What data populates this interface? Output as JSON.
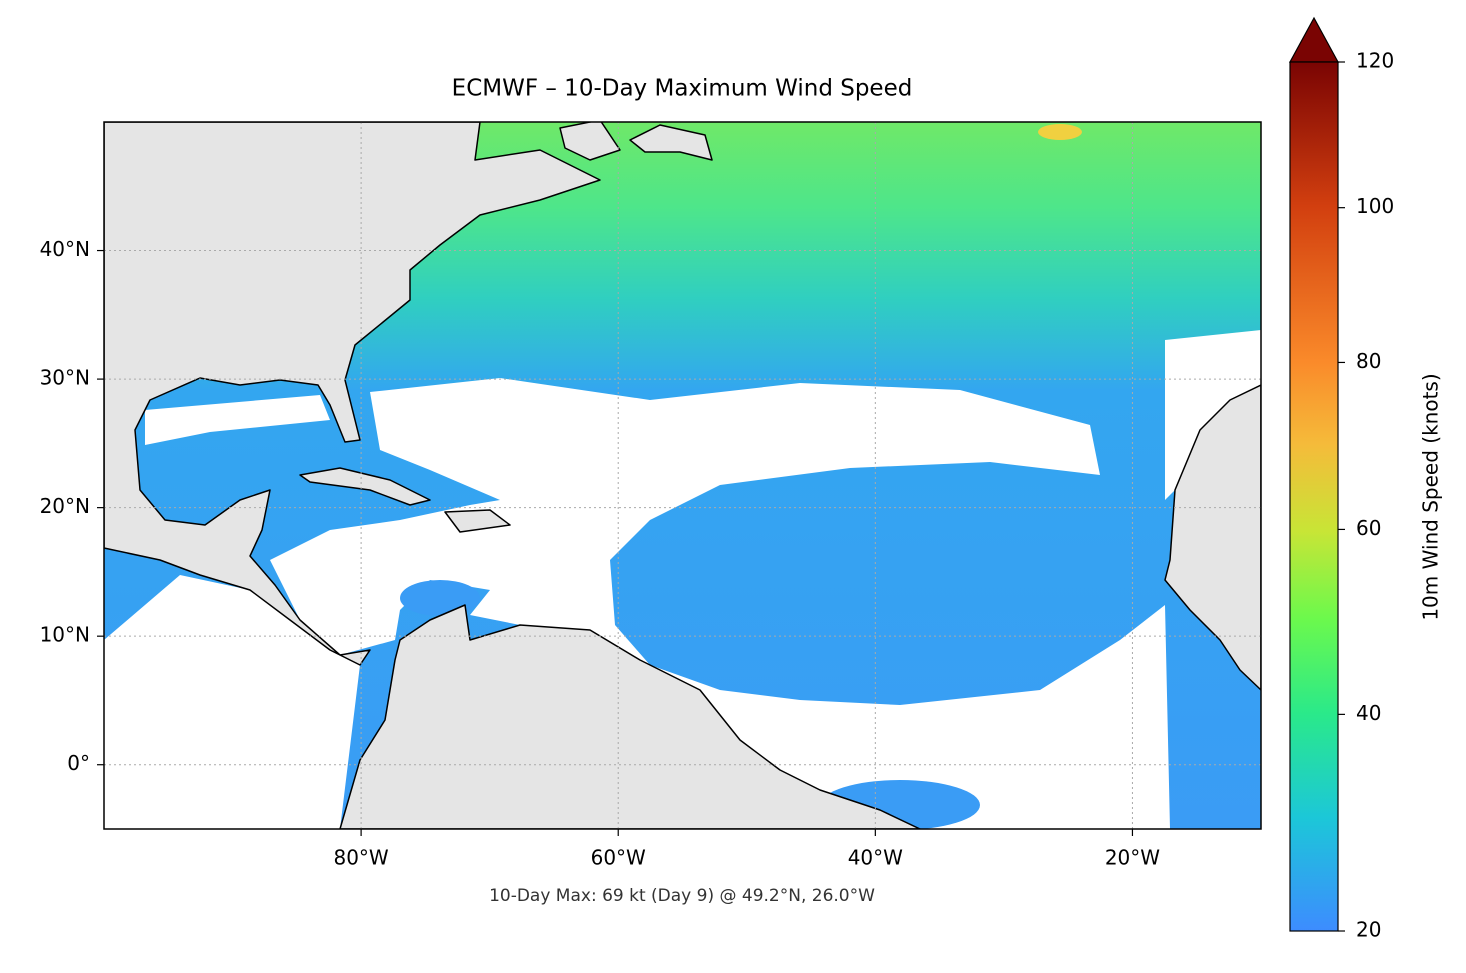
{
  "chart_data": {
    "type": "map",
    "title": "ECMWF – 10-Day Maximum Wind Speed",
    "annotation": "10-Day Max: 69 kt (Day 9) @ 49.2°N, 26.0°W",
    "xlim": [
      -100,
      -10
    ],
    "ylim": [
      -5,
      50
    ],
    "xticks": [
      {
        "value": -80,
        "label": "80°W"
      },
      {
        "value": -60,
        "label": "60°W"
      },
      {
        "value": -40,
        "label": "40°W"
      },
      {
        "value": -20,
        "label": "20°W"
      }
    ],
    "yticks": [
      {
        "value": 0,
        "label": "0°"
      },
      {
        "value": 10,
        "label": "10°N"
      },
      {
        "value": 20,
        "label": "20°N"
      },
      {
        "value": 30,
        "label": "30°N"
      },
      {
        "value": 40,
        "label": "40°N"
      }
    ],
    "grid": true,
    "colorbar": {
      "label": "10m Wind Speed (knots)",
      "lim": [
        20,
        120
      ],
      "ticks": [
        20,
        40,
        60,
        80,
        100,
        120
      ],
      "norm": "power",
      "gamma": 0.7,
      "extend": "max"
    }
  }
}
